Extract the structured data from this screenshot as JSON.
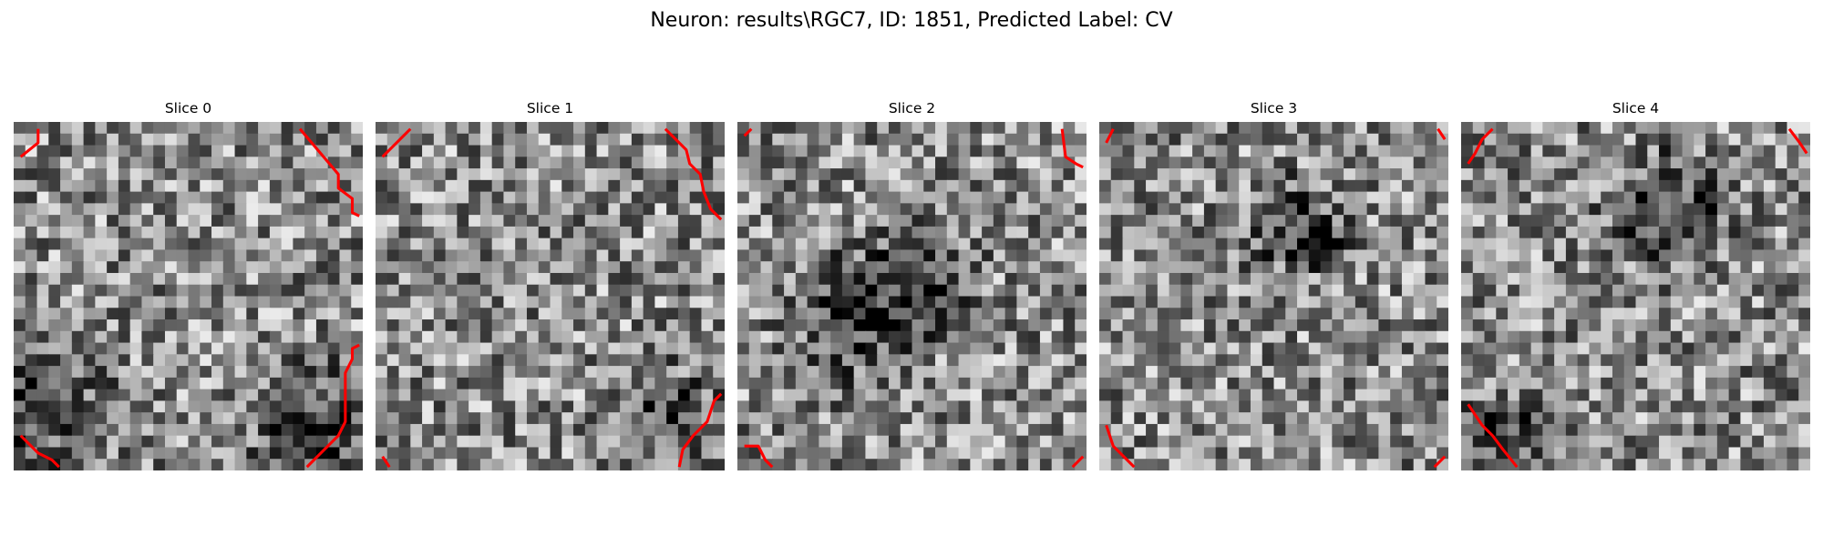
{
  "figure": {
    "title": "Neuron: results\\RGC7, ID: 1851, Predicted Label: CV"
  },
  "panels": [
    {
      "title": "Slice 0",
      "texture_seed": 11,
      "dark_blobs": [
        [
          0.05,
          0.8,
          0.35
        ],
        [
          0.9,
          0.9,
          0.3
        ]
      ],
      "contours": [
        [
          [
            0.02,
            0.1
          ],
          [
            0.07,
            0.06
          ],
          [
            0.07,
            0.02
          ]
        ],
        [
          [
            0.82,
            0.02
          ],
          [
            0.93,
            0.15
          ],
          [
            0.93,
            0.19
          ],
          [
            0.97,
            0.22
          ],
          [
            0.97,
            0.26
          ],
          [
            0.99,
            0.27
          ]
        ],
        [
          [
            0.02,
            0.9
          ],
          [
            0.07,
            0.95
          ],
          [
            0.11,
            0.97
          ],
          [
            0.13,
            0.99
          ]
        ],
        [
          [
            0.84,
            0.99
          ],
          [
            0.93,
            0.9
          ],
          [
            0.95,
            0.86
          ],
          [
            0.95,
            0.72
          ],
          [
            0.97,
            0.68
          ],
          [
            0.97,
            0.65
          ],
          [
            0.99,
            0.64
          ]
        ]
      ]
    },
    {
      "title": "Slice 1",
      "texture_seed": 23,
      "dark_blobs": [
        [
          0.85,
          0.85,
          0.2
        ]
      ],
      "contours": [
        [
          [
            0.02,
            0.1
          ],
          [
            0.1,
            0.02
          ]
        ],
        [
          [
            0.83,
            0.02
          ],
          [
            0.89,
            0.08
          ],
          [
            0.9,
            0.12
          ],
          [
            0.93,
            0.15
          ],
          [
            0.94,
            0.2
          ],
          [
            0.96,
            0.25
          ],
          [
            0.99,
            0.28
          ]
        ],
        [
          [
            0.02,
            0.96
          ],
          [
            0.04,
            0.99
          ]
        ],
        [
          [
            0.87,
            0.99
          ],
          [
            0.88,
            0.94
          ],
          [
            0.91,
            0.9
          ],
          [
            0.95,
            0.86
          ],
          [
            0.97,
            0.8
          ],
          [
            0.99,
            0.78
          ]
        ]
      ]
    },
    {
      "title": "Slice 2",
      "texture_seed": 37,
      "dark_blobs": [
        [
          0.35,
          0.55,
          0.3
        ],
        [
          0.55,
          0.45,
          0.2
        ]
      ],
      "contours": [
        [
          [
            0.02,
            0.04
          ],
          [
            0.04,
            0.02
          ]
        ],
        [
          [
            0.93,
            0.02
          ],
          [
            0.94,
            0.1
          ],
          [
            0.97,
            0.12
          ],
          [
            0.99,
            0.13
          ]
        ],
        [
          [
            0.02,
            0.93
          ],
          [
            0.06,
            0.93
          ],
          [
            0.08,
            0.97
          ],
          [
            0.1,
            0.99
          ]
        ],
        [
          [
            0.96,
            0.99
          ],
          [
            0.99,
            0.96
          ]
        ]
      ]
    },
    {
      "title": "Slice 3",
      "texture_seed": 53,
      "dark_blobs": [
        [
          0.55,
          0.3,
          0.2
        ],
        [
          0.65,
          0.35,
          0.1
        ]
      ],
      "contours": [
        [
          [
            0.02,
            0.06
          ],
          [
            0.04,
            0.02
          ]
        ],
        [
          [
            0.97,
            0.02
          ],
          [
            0.99,
            0.05
          ]
        ],
        [
          [
            0.02,
            0.87
          ],
          [
            0.04,
            0.93
          ],
          [
            0.07,
            0.96
          ],
          [
            0.1,
            0.99
          ]
        ],
        [
          [
            0.96,
            0.99
          ],
          [
            0.99,
            0.96
          ]
        ]
      ]
    },
    {
      "title": "Slice 4",
      "texture_seed": 71,
      "dark_blobs": [
        [
          0.6,
          0.25,
          0.25
        ],
        [
          0.1,
          0.9,
          0.2
        ]
      ],
      "contours": [
        [
          [
            0.02,
            0.12
          ],
          [
            0.04,
            0.09
          ],
          [
            0.06,
            0.05
          ],
          [
            0.09,
            0.02
          ]
        ],
        [
          [
            0.94,
            0.02
          ],
          [
            0.97,
            0.06
          ],
          [
            0.99,
            0.09
          ]
        ],
        [
          [
            0.02,
            0.81
          ],
          [
            0.04,
            0.84
          ],
          [
            0.06,
            0.87
          ],
          [
            0.09,
            0.9
          ],
          [
            0.12,
            0.94
          ],
          [
            0.16,
            0.99
          ]
        ]
      ]
    }
  ],
  "colors": {
    "contour": "#ff0000",
    "background": "#ffffff"
  },
  "image_grid": {
    "cells": 30
  }
}
